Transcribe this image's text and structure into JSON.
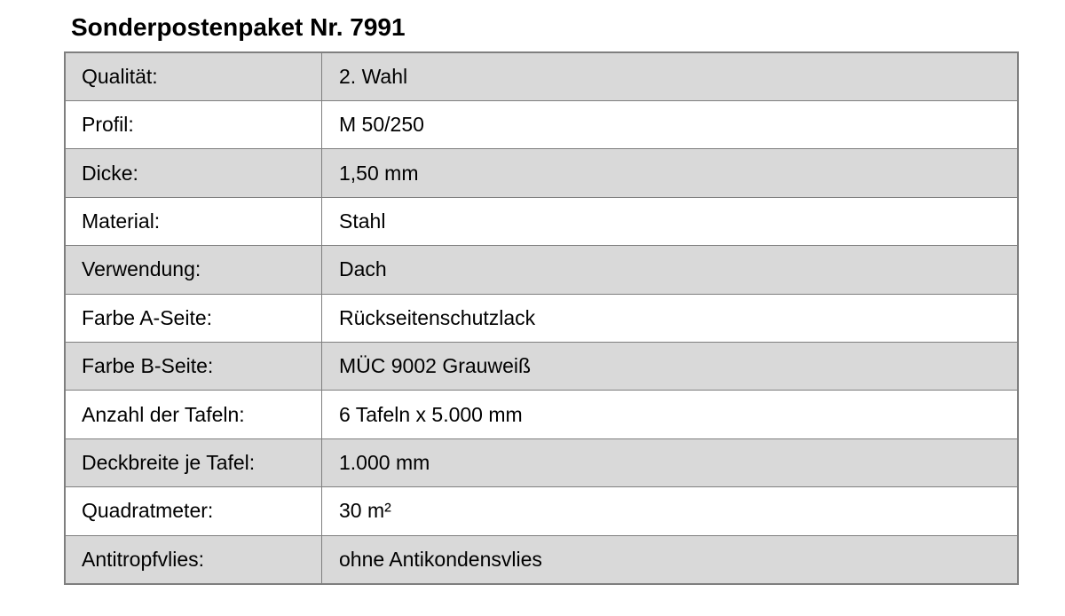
{
  "page": {
    "title": "Sonderpostenpaket Nr. 7991",
    "background_color": "#ffffff"
  },
  "spec_table": {
    "rows": [
      {
        "label": "Qualität:",
        "value": "2. Wahl"
      },
      {
        "label": "Profil:",
        "value": "M 50/250"
      },
      {
        "label": "Dicke:",
        "value": "1,50 mm"
      },
      {
        "label": "Material:",
        "value": "Stahl"
      },
      {
        "label": "Verwendung:",
        "value": "Dach"
      },
      {
        "label": "Farbe A-Seite:",
        "value": "Rückseitenschutzlack"
      },
      {
        "label": "Farbe B-Seite:",
        "value": "MÜC 9002 Grauweiß"
      },
      {
        "label": "Anzahl der Tafeln:",
        "value": "6 Tafeln x 5.000 mm"
      },
      {
        "label": "Deckbreite je Tafel:",
        "value": "1.000 mm"
      },
      {
        "label": "Quadratmeter:",
        "value": "30 m²"
      },
      {
        "label": "Antitropfvlies:",
        "value": "ohne Antikondensvlies"
      }
    ],
    "colors": {
      "row_shaded": "#d9d9d9",
      "row_plain": "#ffffff",
      "border": "#7f7f7f",
      "text": "#000000"
    }
  }
}
